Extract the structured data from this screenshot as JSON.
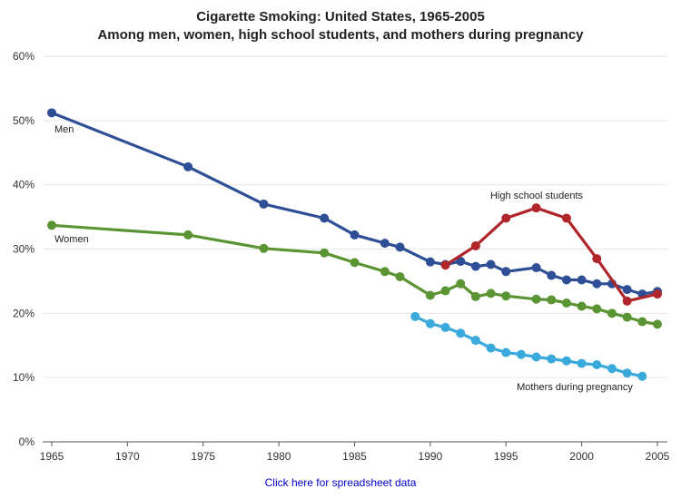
{
  "chart_data": {
    "type": "line",
    "title": "Cigarette Smoking: United States, 1965-2005",
    "subtitle": "Among men, women, high school students, and mothers during pregnancy",
    "xlabel": "",
    "ylabel": "",
    "xlim": [
      1965,
      2005
    ],
    "ylim": [
      0,
      60
    ],
    "x_ticks": [
      "1965",
      "1970",
      "1975",
      "1980",
      "1985",
      "1990",
      "1995",
      "2000",
      "2005"
    ],
    "y_ticks": [
      "0%",
      "10%",
      "20%",
      "30%",
      "40%",
      "50%",
      "60%"
    ],
    "grid": true,
    "series": [
      {
        "name": "Men",
        "color": "#2e4f96",
        "points": [
          [
            1965,
            51.2
          ],
          [
            1974,
            42.8
          ],
          [
            1979,
            37.0
          ],
          [
            1983,
            34.8
          ],
          [
            1985,
            32.2
          ],
          [
            1987,
            30.9
          ],
          [
            1988,
            30.3
          ],
          [
            1990,
            28.0
          ],
          [
            1991,
            27.6
          ],
          [
            1992,
            28.1
          ],
          [
            1993,
            27.3
          ],
          [
            1994,
            27.6
          ],
          [
            1995,
            26.5
          ],
          [
            1997,
            27.1
          ],
          [
            1998,
            25.9
          ],
          [
            1999,
            25.2
          ],
          [
            2000,
            25.2
          ],
          [
            2001,
            24.6
          ],
          [
            2002,
            24.6
          ],
          [
            2003,
            23.7
          ],
          [
            2004,
            23.0
          ],
          [
            2005,
            23.4
          ]
        ]
      },
      {
        "name": "Women",
        "color": "#5a9433",
        "points": [
          [
            1965,
            33.7
          ],
          [
            1974,
            32.2
          ],
          [
            1979,
            30.1
          ],
          [
            1983,
            29.4
          ],
          [
            1985,
            27.9
          ],
          [
            1987,
            26.5
          ],
          [
            1988,
            25.7
          ],
          [
            1990,
            22.8
          ],
          [
            1991,
            23.5
          ],
          [
            1992,
            24.6
          ],
          [
            1993,
            22.6
          ],
          [
            1994,
            23.1
          ],
          [
            1995,
            22.7
          ],
          [
            1997,
            22.2
          ],
          [
            1998,
            22.1
          ],
          [
            1999,
            21.6
          ],
          [
            2000,
            21.1
          ],
          [
            2001,
            20.7
          ],
          [
            2002,
            20.0
          ],
          [
            2003,
            19.4
          ],
          [
            2004,
            18.7
          ],
          [
            2005,
            18.3
          ]
        ]
      },
      {
        "name": "High school students",
        "color": "#b0262a",
        "points": [
          [
            1991,
            27.5
          ],
          [
            1993,
            30.5
          ],
          [
            1995,
            34.8
          ],
          [
            1997,
            36.4
          ],
          [
            1999,
            34.8
          ],
          [
            2001,
            28.5
          ],
          [
            2003,
            21.9
          ],
          [
            2005,
            23.0
          ]
        ]
      },
      {
        "name": "Mothers during pregnancy",
        "color": "#3aa9dc",
        "points": [
          [
            1989,
            19.5
          ],
          [
            1990,
            18.4
          ],
          [
            1991,
            17.8
          ],
          [
            1992,
            16.9
          ],
          [
            1993,
            15.8
          ],
          [
            1994,
            14.6
          ],
          [
            1995,
            13.9
          ],
          [
            1996,
            13.6
          ],
          [
            1997,
            13.2
          ],
          [
            1998,
            12.9
          ],
          [
            1999,
            12.6
          ],
          [
            2000,
            12.2
          ],
          [
            2001,
            12.0
          ],
          [
            2002,
            11.4
          ],
          [
            2003,
            10.7
          ],
          [
            2004,
            10.2
          ]
        ]
      }
    ]
  },
  "footer": {
    "link_label": "Click here for spreadsheet data"
  }
}
